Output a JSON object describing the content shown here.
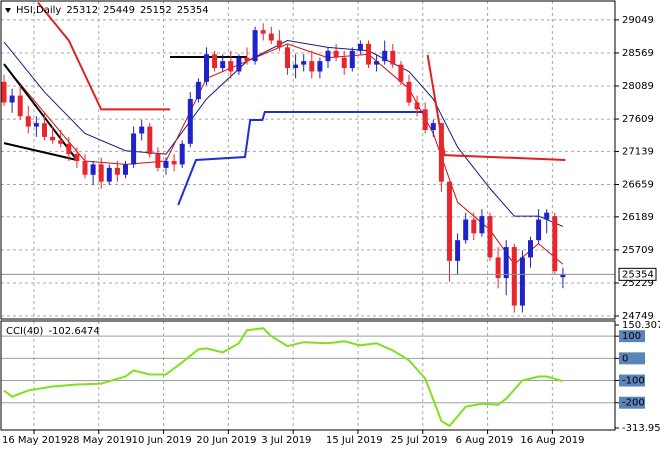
{
  "chart_data": [
    {
      "type": "candlestick",
      "title": "HSI,Daily",
      "categories": [
        "16 May 2019",
        null,
        null,
        null,
        null,
        null,
        null,
        null,
        "28 May 2019",
        null,
        null,
        null,
        null,
        null,
        null,
        null,
        "10 Jun 2019",
        null,
        null,
        null,
        null,
        null,
        null,
        null,
        "20 Jun 2019",
        null,
        null,
        null,
        null,
        null,
        null,
        null,
        "3 Jul 2019",
        null,
        null,
        null,
        null,
        null,
        null,
        null,
        "15 Jul 2019",
        null,
        null,
        null,
        null,
        null,
        null,
        null,
        "25 Jul 2019",
        null,
        null,
        null,
        null,
        null,
        null,
        null,
        "6 Aug 2019",
        null,
        null,
        null,
        null,
        null,
        null,
        null,
        "16 Aug 2019",
        null,
        null,
        null,
        null,
        null
      ],
      "open": [
        28150,
        27850,
        27950,
        27650,
        27500,
        27550,
        27350,
        27300,
        27250,
        27100,
        27000,
        26800,
        26950,
        26700,
        26900,
        26800,
        26950,
        27400,
        27500,
        27100,
        26900,
        27000,
        26950,
        27250,
        27900,
        28150,
        28550,
        28350,
        28450,
        28300,
        28500,
        28450,
        28900,
        28850,
        28750,
        28650,
        28350,
        28400,
        28450,
        28300,
        28450,
        28600,
        28500,
        28350,
        28600,
        28700,
        28400,
        28450,
        28600,
        28400,
        28150,
        27850,
        27750,
        27450,
        27550,
        26700,
        25550,
        25850,
        26150,
        25950,
        26200,
        25600,
        25300,
        25750,
        24900,
        25600,
        25850,
        26150,
        26200,
        25312
      ],
      "high": [
        28250,
        28050,
        28100,
        27800,
        27650,
        27700,
        27500,
        27450,
        27350,
        27200,
        27100,
        27000,
        27050,
        26950,
        27000,
        27000,
        27500,
        27600,
        27550,
        27200,
        27050,
        27100,
        27300,
        28000,
        28200,
        28650,
        28600,
        28550,
        28600,
        28550,
        28650,
        28950,
        29000,
        28950,
        28900,
        28700,
        28550,
        28550,
        28600,
        28500,
        28650,
        28700,
        28600,
        28650,
        28750,
        28750,
        28550,
        28750,
        28700,
        28450,
        28250,
        27950,
        27850,
        27600,
        27550,
        26700,
        25950,
        26250,
        26250,
        26300,
        26250,
        25750,
        25850,
        25800,
        25700,
        25900,
        26300,
        26300,
        26250,
        25449
      ],
      "low": [
        27800,
        27700,
        27600,
        27400,
        27350,
        27300,
        27250,
        27200,
        27000,
        26900,
        26750,
        26650,
        26600,
        26650,
        26700,
        26750,
        26900,
        27300,
        27050,
        26850,
        26800,
        26850,
        26900,
        27200,
        27850,
        28100,
        28300,
        28300,
        28200,
        28250,
        28400,
        28400,
        28750,
        28700,
        28600,
        28250,
        28200,
        28300,
        28200,
        28200,
        28350,
        28450,
        28250,
        28300,
        28550,
        28350,
        28300,
        28400,
        28350,
        28100,
        27800,
        27650,
        27400,
        27350,
        26550,
        25250,
        25350,
        25800,
        25850,
        25900,
        25550,
        25150,
        25050,
        24800,
        24800,
        25450,
        25800,
        25950,
        25350,
        25152
      ],
      "close": [
        27850,
        27950,
        27650,
        27500,
        27550,
        27350,
        27300,
        27250,
        27100,
        27000,
        26800,
        26950,
        26700,
        26900,
        26800,
        26950,
        27400,
        27500,
        27100,
        26900,
        27000,
        26950,
        27250,
        27900,
        28150,
        28550,
        28350,
        28450,
        28300,
        28500,
        28450,
        28900,
        28850,
        28750,
        28650,
        28350,
        28400,
        28450,
        28300,
        28450,
        28600,
        28500,
        28350,
        28600,
        28700,
        28400,
        28450,
        28600,
        28400,
        28150,
        27850,
        27750,
        27450,
        27550,
        26700,
        25550,
        25850,
        26150,
        25950,
        26200,
        25600,
        25300,
        25750,
        24900,
        25600,
        25850,
        26150,
        26250,
        25400,
        25354
      ],
      "up_color": "#1e22c8",
      "down_color": "#e8262d",
      "ylim": [
        24720,
        29280
      ],
      "yticks": [
        29049,
        28569,
        28089,
        27609,
        27139,
        26659,
        26189,
        25709,
        25229,
        24749
      ],
      "grid": true,
      "overlays": [
        {
          "kind": "ma",
          "color": "#1a1a80",
          "x": [
            0,
            5,
            10,
            15,
            20,
            25,
            30,
            35,
            40,
            45,
            50,
            53,
            56,
            60,
            63,
            66,
            69
          ],
          "values": [
            28730,
            28000,
            27400,
            27150,
            27100,
            27900,
            28450,
            28750,
            28650,
            28600,
            28300,
            27900,
            27200,
            26600,
            26200,
            26200,
            26050
          ]
        },
        {
          "kind": "ma",
          "color": "#d01010",
          "x": [
            0,
            5,
            10,
            15,
            20,
            25,
            30,
            35,
            40,
            45,
            50,
            53,
            56,
            60,
            63,
            66,
            69
          ],
          "values": [
            28400,
            27700,
            27000,
            26950,
            27000,
            28200,
            28450,
            28700,
            28500,
            28550,
            28050,
            27400,
            26400,
            26000,
            25500,
            25800,
            25500
          ]
        },
        {
          "kind": "step",
          "color": "#e02020",
          "x": [
            4.2,
            8,
            12,
            20.5
          ],
          "values": [
            29300,
            28750,
            27750,
            27750
          ]
        },
        {
          "kind": "step",
          "color": "#e02020",
          "x": [
            52.3,
            54.4,
            69.3
          ],
          "values": [
            28538,
            27085,
            27015
          ]
        },
        {
          "kind": "step",
          "color": "#2030d0",
          "x": [
            21.5,
            23.7,
            29.75,
            30.4,
            31.9,
            32.2,
            52
          ],
          "values": [
            26361,
            27015,
            27058,
            27596,
            27596,
            27712,
            27712
          ]
        },
        {
          "kind": "trend",
          "color": "#000000",
          "x": [
            0,
            9
          ],
          "values": [
            28409,
            27015
          ]
        },
        {
          "kind": "trend",
          "color": "#000000",
          "x": [
            0,
            9
          ],
          "values": [
            27260,
            27015
          ]
        },
        {
          "kind": "trend",
          "color": "#000000",
          "x": [
            20.5,
            30
          ],
          "values": [
            28510,
            28510
          ]
        }
      ]
    },
    {
      "type": "line",
      "name": "CCI(40)",
      "color": "#80e020",
      "x": [
        0,
        1,
        3,
        6,
        9,
        12,
        15,
        16,
        18,
        20,
        22,
        24,
        25,
        27,
        29,
        30,
        32,
        33,
        35,
        37,
        40,
        42,
        44,
        46,
        48,
        50,
        52,
        54,
        55,
        57,
        59,
        61,
        62,
        64,
        66,
        67,
        69
      ],
      "values": [
        -145,
        -173,
        -145,
        -127,
        -118,
        -114,
        -82,
        -55,
        -73,
        -73,
        -18,
        41,
        45,
        27,
        68,
        127,
        136,
        100,
        55,
        73,
        68,
        77,
        59,
        68,
        36,
        -9,
        -91,
        -282,
        -305,
        -218,
        -205,
        -209,
        -182,
        -100,
        -82,
        -82,
        -102.6474
      ],
      "ylim": [
        -313.95,
        150.3071
      ],
      "yticks": [
        150.3071,
        100,
        0,
        -100,
        -200,
        {
          "value": -313.95,
          "label": "-313.950"
        }
      ]
    }
  ]
}
